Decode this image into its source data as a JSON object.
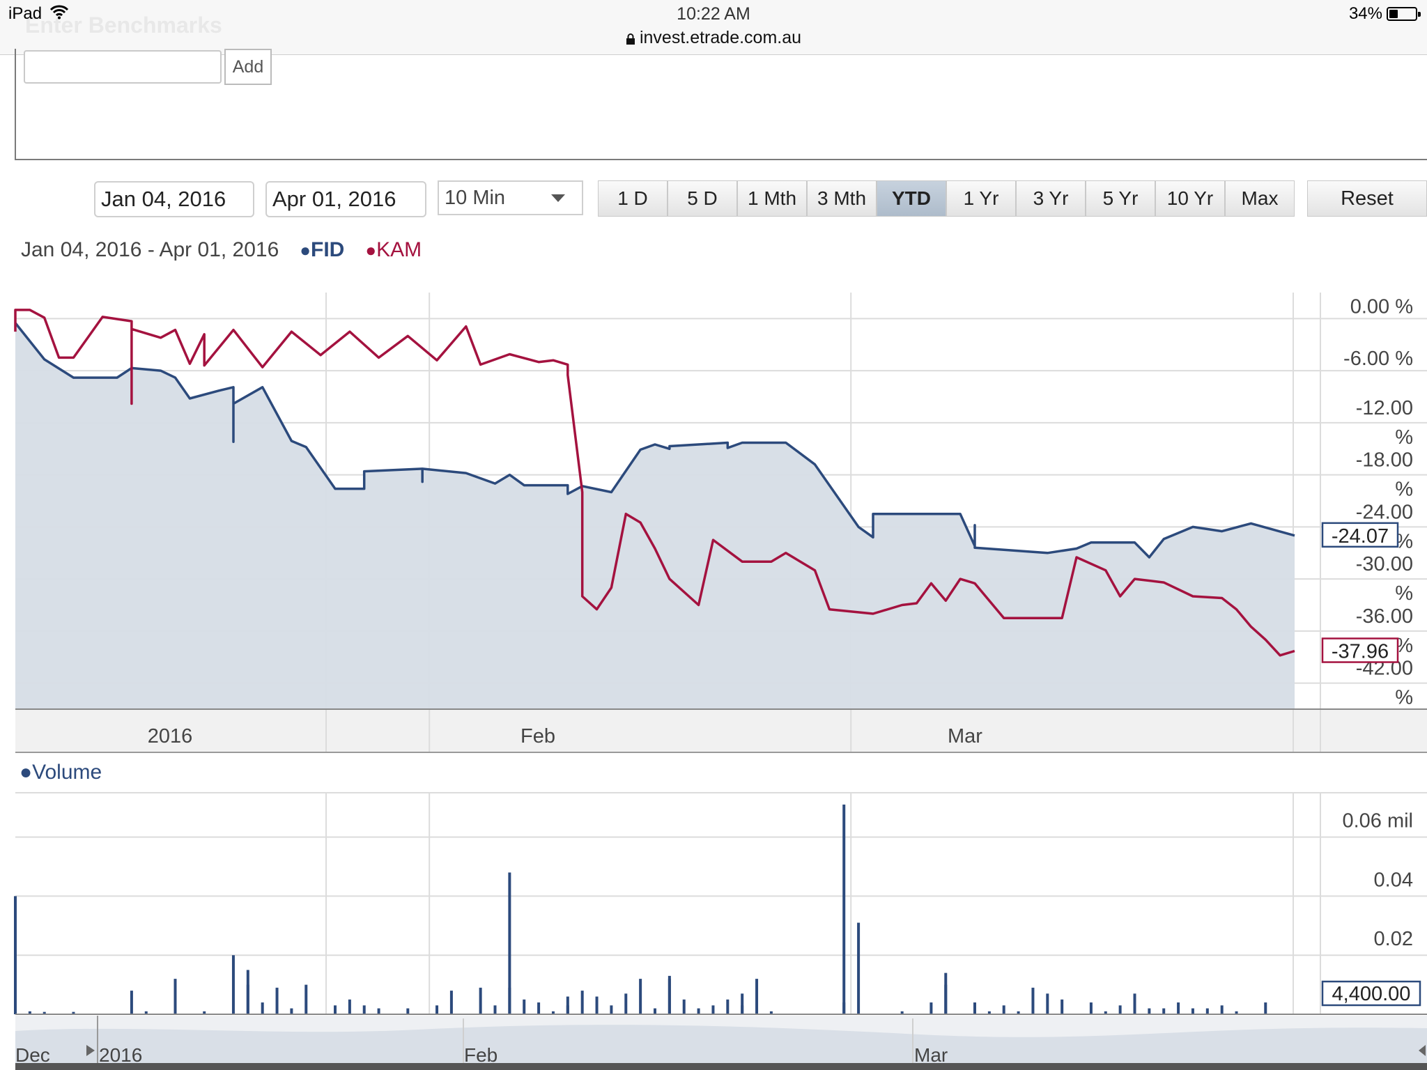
{
  "status_bar": {
    "device": "iPad",
    "time": "10:22 AM",
    "url": "invest.etrade.com.au",
    "battery": "34%"
  },
  "benchmarks": {
    "heading": "Enter Benchmarks",
    "input_value": "",
    "add_label": "Add"
  },
  "controls": {
    "start_date": "Jan 04, 2016",
    "end_date": "Apr 01, 2016",
    "interval": "10 Min",
    "ranges": [
      "1 D",
      "5 D",
      "1 Mth",
      "3 Mth",
      "YTD",
      "1 Yr",
      "3 Yr",
      "5 Yr",
      "10 Yr",
      "Max"
    ],
    "active_range": "YTD",
    "reset_label": "Reset"
  },
  "legend": {
    "range_text": "Jan 04, 2016 - Apr 01, 2016",
    "dot": "●",
    "series1": "FID",
    "series2": "KAM",
    "volume": "Volume"
  },
  "colors": {
    "fid": "#2c4a7c",
    "kam": "#a4123f",
    "area_fill": "#d6dde6",
    "active_button": "#b9c6d4"
  },
  "chart_data": [
    {
      "type": "line",
      "ylim": [
        -45,
        3
      ],
      "y_ticks": [
        "0.00 %",
        "-6.00 %",
        "-12.00 %",
        "-18.00 %",
        "-24.00 %",
        "-30.00 %",
        "-36.00 %",
        "-42.00 %"
      ],
      "y_tick_values": [
        0,
        -6,
        -12,
        -18,
        -24,
        -30,
        -36,
        -42
      ],
      "x_range": [
        "2016-01-04",
        "2016-04-01"
      ],
      "x_ticks": [
        "2016",
        "Feb",
        "Mar"
      ],
      "series": [
        {
          "name": "FID",
          "color": "#2c4a7c",
          "filled": true,
          "last_value_label": "-24.07",
          "points": [
            [
              "2016-01-04",
              -0.5
            ],
            [
              "2016-01-06",
              -4.7
            ],
            [
              "2016-01-08",
              -6.8
            ],
            [
              "2016-01-11",
              -6.8
            ],
            [
              "2016-01-12",
              -5.7
            ],
            [
              "2016-01-14",
              -6.0
            ],
            [
              "2016-01-15",
              -6.8
            ],
            [
              "2016-01-16",
              -9.2
            ],
            [
              "2016-01-18",
              -8.3
            ],
            [
              "2016-01-19",
              -7.9
            ],
            [
              "2016-01-19",
              -14.2
            ],
            [
              "2016-01-19",
              -9.8
            ],
            [
              "2016-01-21",
              -7.9
            ],
            [
              "2016-01-23",
              -14.1
            ],
            [
              "2016-01-24",
              -14.8
            ],
            [
              "2016-01-26",
              -19.6
            ],
            [
              "2016-01-28",
              -19.6
            ],
            [
              "2016-01-28",
              -17.6
            ],
            [
              "2016-02-01",
              -17.3
            ],
            [
              "2016-02-01",
              -18.8
            ],
            [
              "2016-02-01",
              -17.3
            ],
            [
              "2016-02-04",
              -17.8
            ],
            [
              "2016-02-06",
              -19.0
            ],
            [
              "2016-02-07",
              -18.0
            ],
            [
              "2016-02-08",
              -19.2
            ],
            [
              "2016-02-11",
              -19.2
            ],
            [
              "2016-02-11",
              -20.2
            ],
            [
              "2016-02-12",
              -19.3
            ],
            [
              "2016-02-14",
              -20.0
            ],
            [
              "2016-02-16",
              -15.1
            ],
            [
              "2016-02-17",
              -14.5
            ],
            [
              "2016-02-18",
              -15.0
            ],
            [
              "2016-02-18",
              -14.7
            ],
            [
              "2016-02-20",
              -14.5
            ],
            [
              "2016-02-22",
              -14.3
            ],
            [
              "2016-02-22",
              -14.9
            ],
            [
              "2016-02-23",
              -14.3
            ],
            [
              "2016-02-26",
              -14.3
            ],
            [
              "2016-02-28",
              -16.8
            ],
            [
              "2016-03-02",
              -24.0
            ],
            [
              "2016-03-03",
              -25.2
            ],
            [
              "2016-03-03",
              -22.5
            ],
            [
              "2016-03-09",
              -22.5
            ],
            [
              "2016-03-10",
              -26.2
            ],
            [
              "2016-03-10",
              -23.8
            ],
            [
              "2016-03-10",
              -26.4
            ],
            [
              "2016-03-15",
              -27.0
            ],
            [
              "2016-03-17",
              -26.5
            ],
            [
              "2016-03-18",
              -25.8
            ],
            [
              "2016-03-21",
              -25.8
            ],
            [
              "2016-03-22",
              -27.5
            ],
            [
              "2016-03-23",
              -25.4
            ],
            [
              "2016-03-25",
              -24.0
            ],
            [
              "2016-03-27",
              -24.5
            ],
            [
              "2016-03-29",
              -23.6
            ],
            [
              "2016-04-01",
              -25.0
            ]
          ]
        },
        {
          "name": "KAM",
          "color": "#a4123f",
          "filled": false,
          "last_value_label": "-37.96",
          "points": [
            [
              "2016-01-04",
              -1.5
            ],
            [
              "2016-01-04",
              1.0
            ],
            [
              "2016-01-05",
              1.0
            ],
            [
              "2016-01-06",
              0.1
            ],
            [
              "2016-01-06",
              0.1
            ],
            [
              "2016-01-06",
              0.1
            ],
            [
              "2016-01-07",
              -4.5
            ],
            [
              "2016-01-08",
              -4.5
            ],
            [
              "2016-01-10",
              0.2
            ],
            [
              "2016-01-12",
              -0.3
            ],
            [
              "2016-01-12",
              -4.5
            ],
            [
              "2016-01-12",
              -9.8
            ],
            [
              "2016-01-12",
              -1.2
            ],
            [
              "2016-01-14",
              -2.2
            ],
            [
              "2016-01-15",
              -1.3
            ],
            [
              "2016-01-16",
              -5.2
            ],
            [
              "2016-01-17",
              -1.8
            ],
            [
              "2016-01-17",
              -5.4
            ],
            [
              "2016-01-19",
              -1.3
            ],
            [
              "2016-01-21",
              -5.6
            ],
            [
              "2016-01-23",
              -1.5
            ],
            [
              "2016-01-25",
              -4.2
            ],
            [
              "2016-01-27",
              -1.5
            ],
            [
              "2016-01-29",
              -4.5
            ],
            [
              "2016-01-31",
              -2.0
            ],
            [
              "2016-02-02",
              -4.8
            ],
            [
              "2016-02-04",
              -0.9
            ],
            [
              "2016-02-05",
              -5.3
            ],
            [
              "2016-02-07",
              -4.1
            ],
            [
              "2016-02-09",
              -5.0
            ],
            [
              "2016-02-10",
              -4.8
            ],
            [
              "2016-02-11",
              -5.3
            ],
            [
              "2016-02-11",
              -6.5
            ],
            [
              "2016-02-12",
              -20.0
            ],
            [
              "2016-02-12",
              -32.0
            ],
            [
              "2016-02-13",
              -33.5
            ],
            [
              "2016-02-14",
              -31.0
            ],
            [
              "2016-02-15",
              -22.5
            ],
            [
              "2016-02-16",
              -23.5
            ],
            [
              "2016-02-17",
              -26.5
            ],
            [
              "2016-02-18",
              -30.0
            ],
            [
              "2016-02-20",
              -33.0
            ],
            [
              "2016-02-21",
              -25.5
            ],
            [
              "2016-02-23",
              -28.0
            ],
            [
              "2016-02-25",
              -28.0
            ],
            [
              "2016-02-26",
              -27.0
            ],
            [
              "2016-02-27",
              -28.0
            ],
            [
              "2016-02-28",
              -29.0
            ],
            [
              "2016-02-29",
              -33.5
            ],
            [
              "2016-03-03",
              -34.0
            ],
            [
              "2016-03-05",
              -33.0
            ],
            [
              "2016-03-06",
              -32.8
            ],
            [
              "2016-03-07",
              -30.5
            ],
            [
              "2016-03-08",
              -32.5
            ],
            [
              "2016-03-09",
              -30.0
            ],
            [
              "2016-03-10",
              -30.5
            ],
            [
              "2016-03-12",
              -34.5
            ],
            [
              "2016-03-16",
              -34.5
            ],
            [
              "2016-03-17",
              -27.5
            ],
            [
              "2016-03-19",
              -29.0
            ],
            [
              "2016-03-20",
              -32.0
            ],
            [
              "2016-03-21",
              -30.0
            ],
            [
              "2016-03-23",
              -30.4
            ],
            [
              "2016-03-25",
              -32.0
            ],
            [
              "2016-03-27",
              -32.2
            ],
            [
              "2016-03-28",
              -33.5
            ],
            [
              "2016-03-29",
              -35.5
            ],
            [
              "2016-03-30",
              -37.0
            ],
            [
              "2016-03-31",
              -38.8
            ],
            [
              "2016-04-01",
              -38.3
            ]
          ]
        }
      ]
    },
    {
      "type": "bar",
      "title": "Volume",
      "ylim": [
        0,
        0.075
      ],
      "y_ticks": [
        "0.06 mil",
        "0.04",
        "0.02"
      ],
      "y_tick_values": [
        0.06,
        0.04,
        0.02
      ],
      "last_value_label": "4,400.00",
      "x_range": [
        "2016-01-04",
        "2016-04-01"
      ],
      "x_ticks": [
        "2016",
        "Feb",
        "Mar"
      ],
      "color": "#2c4a7c",
      "bars": [
        [
          "2016-01-04",
          0.04
        ],
        [
          "2016-01-05",
          0.001
        ],
        [
          "2016-01-06",
          0.0008
        ],
        [
          "2016-01-08",
          0.0008
        ],
        [
          "2016-01-12",
          0.008
        ],
        [
          "2016-01-13",
          0.001
        ],
        [
          "2016-01-15",
          0.012
        ],
        [
          "2016-01-17",
          0.001
        ],
        [
          "2016-01-19",
          0.02
        ],
        [
          "2016-01-20",
          0.015
        ],
        [
          "2016-01-20",
          0.01
        ],
        [
          "2016-01-21",
          0.004
        ],
        [
          "2016-01-22",
          0.009
        ],
        [
          "2016-01-23",
          0.002
        ],
        [
          "2016-01-24",
          0.01
        ],
        [
          "2016-01-26",
          0.003
        ],
        [
          "2016-01-27",
          0.005
        ],
        [
          "2016-01-28",
          0.003
        ],
        [
          "2016-01-29",
          0.002
        ],
        [
          "2016-01-31",
          0.002
        ],
        [
          "2016-02-02",
          0.003
        ],
        [
          "2016-02-03",
          0.008
        ],
        [
          "2016-02-05",
          0.009
        ],
        [
          "2016-02-06",
          0.003
        ],
        [
          "2016-02-07",
          0.048
        ],
        [
          "2016-02-07",
          0.009
        ],
        [
          "2016-02-08",
          0.005
        ],
        [
          "2016-02-09",
          0.004
        ],
        [
          "2016-02-10",
          0.001
        ],
        [
          "2016-02-11",
          0.003
        ],
        [
          "2016-02-11",
          0.006
        ],
        [
          "2016-02-12",
          0.008
        ],
        [
          "2016-02-13",
          0.006
        ],
        [
          "2016-02-14",
          0.003
        ],
        [
          "2016-02-15",
          0.007
        ],
        [
          "2016-02-16",
          0.012
        ],
        [
          "2016-02-17",
          0.002
        ],
        [
          "2016-02-18",
          0.013
        ],
        [
          "2016-02-18",
          0.012
        ],
        [
          "2016-02-19",
          0.005
        ],
        [
          "2016-02-20",
          0.002
        ],
        [
          "2016-02-21",
          0.003
        ],
        [
          "2016-02-22",
          0.005
        ],
        [
          "2016-02-23",
          0.003
        ],
        [
          "2016-02-23",
          0.007
        ],
        [
          "2016-02-24",
          0.012
        ],
        [
          "2016-02-25",
          0.001
        ],
        [
          "2016-03-01",
          0.071
        ],
        [
          "2016-03-01",
          0.004
        ],
        [
          "2016-03-02",
          0.031
        ],
        [
          "2016-03-05",
          0.001
        ],
        [
          "2016-03-07",
          0.004
        ],
        [
          "2016-03-08",
          0.014
        ],
        [
          "2016-03-08",
          0.01
        ],
        [
          "2016-03-10",
          0.004
        ],
        [
          "2016-03-11",
          0.001
        ],
        [
          "2016-03-12",
          0.003
        ],
        [
          "2016-03-13",
          0.001
        ],
        [
          "2016-03-14",
          0.009
        ],
        [
          "2016-03-15",
          0.007
        ],
        [
          "2016-03-16",
          0.005
        ],
        [
          "2016-03-18",
          0.004
        ],
        [
          "2016-03-19",
          0.001
        ],
        [
          "2016-03-20",
          0.003
        ],
        [
          "2016-03-21",
          0.007
        ],
        [
          "2016-03-22",
          0.002
        ],
        [
          "2016-03-23",
          0.002
        ],
        [
          "2016-03-24",
          0.004
        ],
        [
          "2016-03-25",
          0.002
        ],
        [
          "2016-03-26",
          0.002
        ],
        [
          "2016-03-27",
          0.003
        ],
        [
          "2016-03-28",
          0.001
        ],
        [
          "2016-03-30",
          0.004
        ]
      ]
    },
    {
      "type": "area",
      "title": "navigator",
      "x_ticks": [
        "Dec",
        "2016",
        "Feb",
        "Mar"
      ]
    }
  ]
}
